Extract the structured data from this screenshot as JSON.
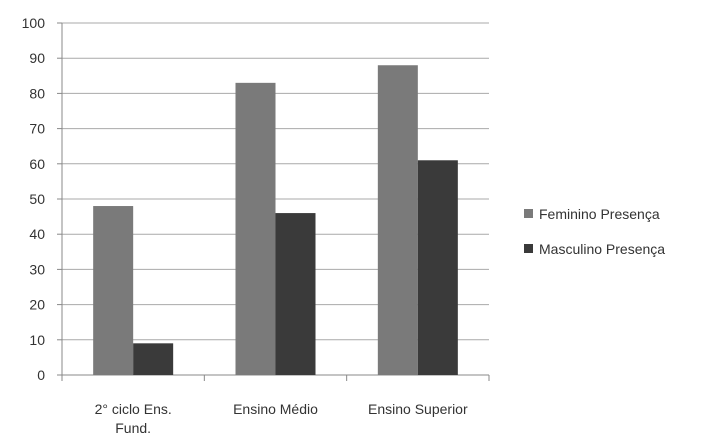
{
  "chart_data": {
    "type": "bar",
    "categories": [
      [
        "2° ciclo Ens.",
        "Fund."
      ],
      [
        "Ensino Médio"
      ],
      [
        "Ensino Superior"
      ]
    ],
    "series": [
      {
        "name": "Feminino Presença",
        "values": [
          48,
          83,
          88
        ],
        "color": "#7a7a7a"
      },
      {
        "name": "Masculino Presença",
        "values": [
          9,
          46,
          61
        ],
        "color": "#3a3a3a"
      }
    ],
    "ylim": [
      0,
      100
    ],
    "yticks": [
      0,
      10,
      20,
      30,
      40,
      50,
      60,
      70,
      80,
      90,
      100
    ],
    "grid": true,
    "legend": "right",
    "title": "",
    "xlabel": "",
    "ylabel": ""
  }
}
